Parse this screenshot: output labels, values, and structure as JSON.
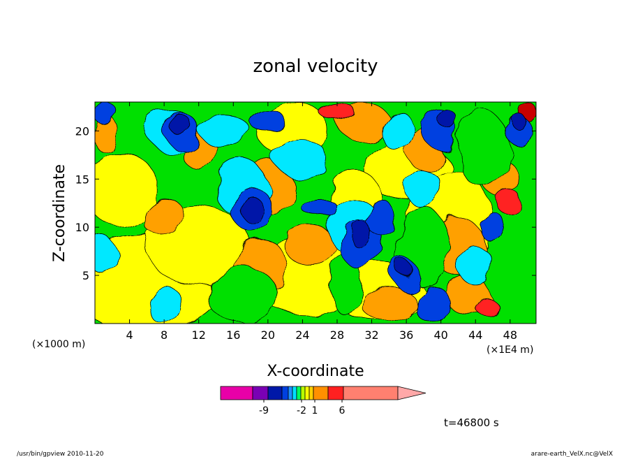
{
  "chart_data": {
    "type": "heatmap",
    "title": "zonal velocity",
    "xlabel": "X-coordinate",
    "ylabel": "Z-coordinate",
    "x_unit_left": "(×1000 m)",
    "x_unit_right": "(×1E4 m)",
    "xlim": [
      0,
      51
    ],
    "ylim": [
      0,
      23
    ],
    "x_ticks": [
      4,
      8,
      12,
      16,
      20,
      24,
      28,
      32,
      36,
      40,
      44,
      48
    ],
    "y_ticks": [
      5,
      10,
      15,
      20
    ],
    "time_label": "t=46800 s",
    "colorbar": {
      "colors": [
        "#e800a8",
        "#7a00b4",
        "#0018a8",
        "#0040e0",
        "#1e90ff",
        "#00e0ff",
        "#00ff60",
        "#b8ff00",
        "#ffff00",
        "#ffd000",
        "#ff9000",
        "#ff2020",
        "#ff8070",
        "#ffa8a8"
      ],
      "tick_labels": [
        "-9",
        "-2",
        "1",
        "6"
      ]
    },
    "palette": {
      "darkblue": "#0018a8",
      "blue": "#0040e0",
      "cyan": "#00e8ff",
      "green": "#00e000",
      "yellow": "#ffff00",
      "orange": "#ffa000",
      "red": "#ff2020",
      "darkred": "#c80000"
    }
  },
  "footer": {
    "left": "/usr/bin/gpview   2010-11-20",
    "right": "arare-earth_VelX.nc@VelX"
  }
}
